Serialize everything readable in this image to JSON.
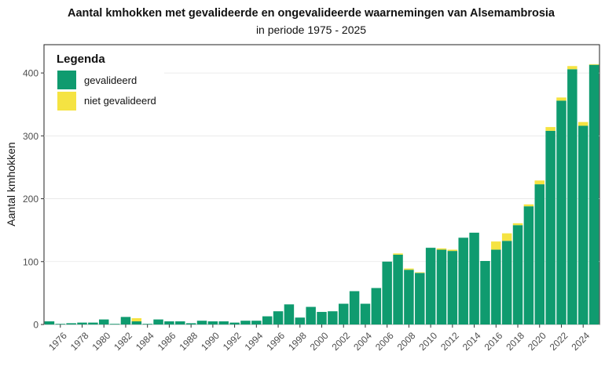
{
  "chart_data": {
    "type": "bar",
    "stacked": true,
    "title": "Aantal kmhokken met gevalideerde en ongevalideerde waarnemingen van Alsemambrosia",
    "subtitle": "in periode 1975 - 2025",
    "xlabel": "",
    "ylabel": "Aantal kmhokken",
    "ylim": [
      0,
      445
    ],
    "yticks": [
      0,
      100,
      200,
      300,
      400
    ],
    "grid": true,
    "legend_title": "Legenda",
    "legend_position": "top-left",
    "categories": [
      1975,
      1976,
      1977,
      1978,
      1979,
      1980,
      1981,
      1982,
      1983,
      1984,
      1985,
      1986,
      1987,
      1988,
      1989,
      1990,
      1991,
      1992,
      1993,
      1994,
      1995,
      1996,
      1997,
      1998,
      1999,
      2000,
      2001,
      2002,
      2003,
      2004,
      2005,
      2006,
      2007,
      2008,
      2009,
      2010,
      2011,
      2012,
      2013,
      2014,
      2015,
      2016,
      2017,
      2018,
      2019,
      2020,
      2021,
      2022,
      2023,
      2024,
      2025
    ],
    "xtick_labels": [
      "1976",
      "1978",
      "1980",
      "1982",
      "1984",
      "1986",
      "1988",
      "1990",
      "1992",
      "1994",
      "1996",
      "1998",
      "2000",
      "2002",
      "2004",
      "2006",
      "2008",
      "2010",
      "2012",
      "2014",
      "2016",
      "2018",
      "2020",
      "2022",
      "2024"
    ],
    "series": [
      {
        "name": "gevalideerd",
        "color": "#0f9b6f",
        "values": [
          5,
          1,
          2,
          3,
          3,
          8,
          1,
          12,
          5,
          1,
          8,
          5,
          5,
          2,
          6,
          5,
          5,
          3,
          6,
          6,
          13,
          21,
          32,
          11,
          28,
          20,
          21,
          33,
          53,
          33,
          58,
          100,
          111,
          87,
          82,
          122,
          119,
          117,
          138,
          146,
          101,
          119,
          133,
          158,
          188,
          223,
          308,
          356,
          406,
          316,
          413
        ]
      },
      {
        "name": "niet gevalideerd",
        "color": "#f5e342",
        "values": [
          0,
          0,
          0,
          0,
          0,
          0,
          0,
          0,
          5,
          0,
          0,
          0,
          0,
          0,
          0,
          0,
          0,
          0,
          0,
          0,
          0,
          0,
          0,
          0,
          0,
          0,
          0,
          0,
          0,
          0,
          0,
          0,
          2,
          2,
          1,
          0,
          2,
          2,
          0,
          0,
          0,
          13,
          12,
          3,
          3,
          6,
          6,
          5,
          5,
          6,
          1
        ]
      }
    ]
  }
}
